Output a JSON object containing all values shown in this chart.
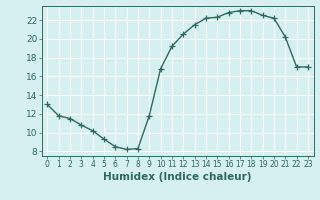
{
  "x": [
    0,
    1,
    2,
    3,
    4,
    5,
    6,
    7,
    8,
    9,
    10,
    11,
    12,
    13,
    14,
    15,
    16,
    17,
    18,
    19,
    20,
    21,
    22,
    23
  ],
  "y": [
    13.0,
    11.8,
    11.5,
    10.8,
    10.2,
    9.3,
    8.5,
    8.2,
    8.3,
    11.8,
    16.8,
    19.2,
    20.5,
    21.5,
    22.2,
    22.3,
    22.8,
    23.0,
    23.0,
    22.5,
    22.2,
    20.2,
    17.0,
    17.0
  ],
  "line_color": "#2d6b5e",
  "marker": "+",
  "marker_size": 4,
  "linewidth": 1.0,
  "xlabel": "Humidex (Indice chaleur)",
  "xlabel_fontsize": 7.5,
  "ylim": [
    7.5,
    23.5
  ],
  "yticks": [
    8,
    10,
    12,
    14,
    16,
    18,
    20,
    22
  ],
  "ytick_fontsize": 6.5,
  "xtick_fontsize": 5.5,
  "bg_color": "#d6eff0",
  "grid_color": "#ffffff"
}
